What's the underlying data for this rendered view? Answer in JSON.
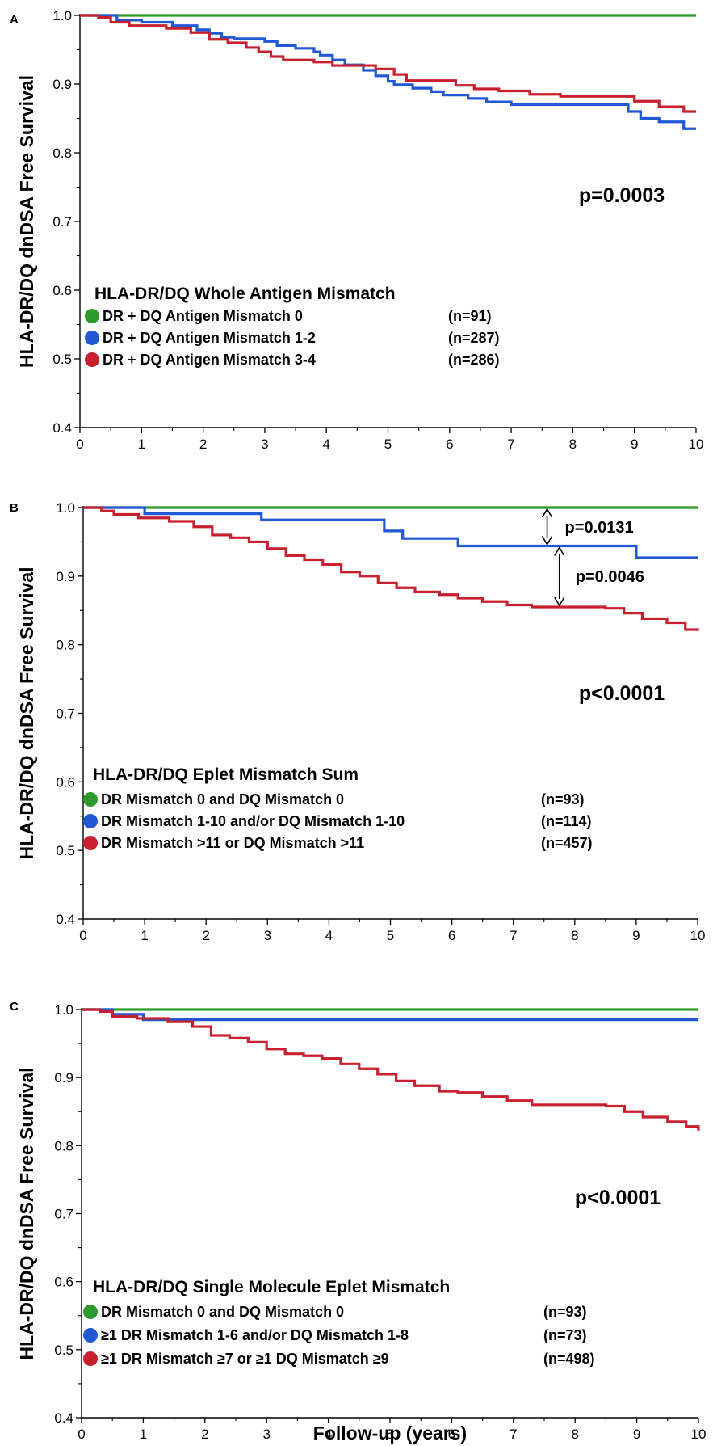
{
  "chart_data": [
    {
      "type": "line",
      "panel": "A",
      "ylabel": "HLA-DR/DQ dnDSA Free Survival",
      "xlabel": "",
      "xlim": [
        0,
        10
      ],
      "ylim": [
        0.4,
        1.0
      ],
      "xticks": [
        0,
        1,
        2,
        3,
        4,
        5,
        6,
        7,
        8,
        9,
        10
      ],
      "yticks": [
        "0.4",
        "0.5",
        "0.6",
        "0.7",
        "0.8",
        "0.9",
        "1.0"
      ],
      "grid": false,
      "pvalue": "p=0.0003",
      "legend_title": "HLA-DR/DQ Whole Antigen Mismatch",
      "series": [
        {
          "name": "DR + DQ Antigen Mismatch 0",
          "n": "(n=91)",
          "color": "#2e9a2e",
          "x": [
            0,
            10
          ],
          "y": [
            1.0,
            1.0
          ]
        },
        {
          "name": "DR + DQ Antigen Mismatch 1-2",
          "n": "(n=287)",
          "color": "#2257d6",
          "x": [
            0,
            0.4,
            0.6,
            1.0,
            1.5,
            1.9,
            2.1,
            2.3,
            2.5,
            2.8,
            3.0,
            3.2,
            3.5,
            3.8,
            3.9,
            4.1,
            4.3,
            4.6,
            4.8,
            5.0,
            5.1,
            5.4,
            5.7,
            5.9,
            6.3,
            6.6,
            7.0,
            8.0,
            8.7,
            8.9,
            9.1,
            9.4,
            9.8,
            10
          ],
          "y": [
            1.0,
            1.0,
            0.993,
            0.99,
            0.985,
            0.979,
            0.974,
            0.968,
            0.966,
            0.966,
            0.962,
            0.956,
            0.952,
            0.947,
            0.942,
            0.935,
            0.928,
            0.92,
            0.912,
            0.904,
            0.899,
            0.894,
            0.889,
            0.884,
            0.879,
            0.874,
            0.87,
            0.87,
            0.87,
            0.86,
            0.85,
            0.845,
            0.835,
            0.835
          ]
        },
        {
          "name": "DR + DQ Antigen Mismatch 3-4",
          "n": "(n=286)",
          "color": "#c8202f",
          "x": [
            0,
            0.3,
            0.5,
            0.8,
            1.4,
            1.8,
            2.1,
            2.4,
            2.7,
            2.9,
            3.1,
            3.3,
            3.8,
            4.1,
            4.8,
            5.1,
            5.3,
            5.8,
            6.1,
            6.4,
            6.8,
            7.3,
            7.8,
            8.6,
            9.0,
            9.4,
            9.8,
            10
          ],
          "y": [
            1.0,
            0.997,
            0.99,
            0.985,
            0.981,
            0.975,
            0.965,
            0.96,
            0.953,
            0.947,
            0.94,
            0.935,
            0.932,
            0.927,
            0.922,
            0.914,
            0.905,
            0.905,
            0.898,
            0.893,
            0.89,
            0.885,
            0.882,
            0.882,
            0.875,
            0.867,
            0.86,
            0.86
          ]
        }
      ]
    },
    {
      "type": "line",
      "panel": "B",
      "ylabel": "HLA-DR/DQ dnDSA Free Survival",
      "xlabel": "",
      "xlim": [
        0,
        10
      ],
      "ylim": [
        0.4,
        1.0
      ],
      "xticks": [
        0,
        1,
        2,
        3,
        4,
        5,
        6,
        7,
        8,
        9,
        10
      ],
      "yticks": [
        "0.4",
        "0.5",
        "0.6",
        "0.7",
        "0.8",
        "0.9",
        "1.0"
      ],
      "grid": false,
      "pvalue": "p<0.0001",
      "annotations": [
        "p=0.0131",
        "p=0.0046"
      ],
      "legend_title": "HLA-DR/DQ Eplet Mismatch Sum",
      "series": [
        {
          "name": "DR Mismatch 0 and DQ Mismatch 0",
          "n": "(n=93)",
          "color": "#2e9a2e",
          "x": [
            0,
            10
          ],
          "y": [
            1.0,
            1.0
          ]
        },
        {
          "name": "DR Mismatch 1-10 and/or DQ Mismatch 1-10",
          "n": "(n=114)",
          "color": "#2257d6",
          "x": [
            0,
            1.0,
            2.9,
            4.9,
            5.2,
            6.1,
            9.0,
            10
          ],
          "y": [
            1.0,
            0.991,
            0.982,
            0.966,
            0.955,
            0.944,
            0.927,
            0.927
          ]
        },
        {
          "name": "DR Mismatch >11 or DQ Mismatch >11",
          "n": "(n=457)",
          "color": "#c8202f",
          "x": [
            0,
            0.3,
            0.5,
            0.9,
            1.4,
            1.8,
            2.1,
            2.4,
            2.7,
            3.0,
            3.3,
            3.6,
            3.9,
            4.2,
            4.5,
            4.8,
            5.1,
            5.4,
            5.8,
            6.1,
            6.5,
            6.9,
            7.3,
            7.8,
            8.5,
            8.8,
            9.1,
            9.5,
            9.8,
            10
          ],
          "y": [
            1.0,
            0.995,
            0.99,
            0.985,
            0.98,
            0.972,
            0.96,
            0.956,
            0.95,
            0.94,
            0.93,
            0.924,
            0.917,
            0.906,
            0.9,
            0.89,
            0.883,
            0.877,
            0.873,
            0.868,
            0.863,
            0.858,
            0.855,
            0.855,
            0.853,
            0.846,
            0.838,
            0.832,
            0.822,
            0.82
          ]
        }
      ]
    },
    {
      "type": "line",
      "panel": "C",
      "ylabel": "HLA-DR/DQ dnDSA Free Survival",
      "xlabel": "Follow-up (years)",
      "xlim": [
        0,
        10
      ],
      "ylim": [
        0.4,
        1.0
      ],
      "xticks": [
        0,
        1,
        2,
        3,
        4,
        5,
        6,
        7,
        8,
        9,
        10
      ],
      "yticks": [
        "0.4",
        "0.5",
        "0.6",
        "0.7",
        "0.8",
        "0.9",
        "1.0"
      ],
      "grid": false,
      "pvalue": "p<0.0001",
      "legend_title": "HLA-DR/DQ Single Molecule Eplet Mismatch",
      "series": [
        {
          "name": "DR Mismatch 0 and DQ Mismatch 0",
          "n": "(n=93)",
          "color": "#2e9a2e",
          "x": [
            0,
            10
          ],
          "y": [
            1.0,
            1.0
          ]
        },
        {
          "name": "≥1 DR Mismatch 1-6 and/or DQ Mismatch 1-8",
          "n": "(n=73)",
          "color": "#2257d6",
          "x": [
            0,
            0.5,
            1.0,
            10
          ],
          "y": [
            1.0,
            0.993,
            0.985,
            0.985
          ]
        },
        {
          "name": "≥1 DR Mismatch ≥7 or ≥1 DQ Mismatch ≥9",
          "n": "(n=498)",
          "color": "#c8202f",
          "x": [
            0,
            0.3,
            0.5,
            0.9,
            1.4,
            1.8,
            2.1,
            2.4,
            2.7,
            3.0,
            3.3,
            3.6,
            3.9,
            4.2,
            4.5,
            4.8,
            5.1,
            5.4,
            5.8,
            6.1,
            6.5,
            6.9,
            7.3,
            7.8,
            8.5,
            8.8,
            9.1,
            9.5,
            9.8,
            10
          ],
          "y": [
            1.0,
            0.997,
            0.99,
            0.987,
            0.982,
            0.975,
            0.962,
            0.958,
            0.952,
            0.942,
            0.935,
            0.932,
            0.928,
            0.92,
            0.913,
            0.905,
            0.895,
            0.888,
            0.88,
            0.878,
            0.872,
            0.866,
            0.86,
            0.86,
            0.858,
            0.85,
            0.842,
            0.835,
            0.828,
            0.822
          ]
        }
      ]
    }
  ]
}
